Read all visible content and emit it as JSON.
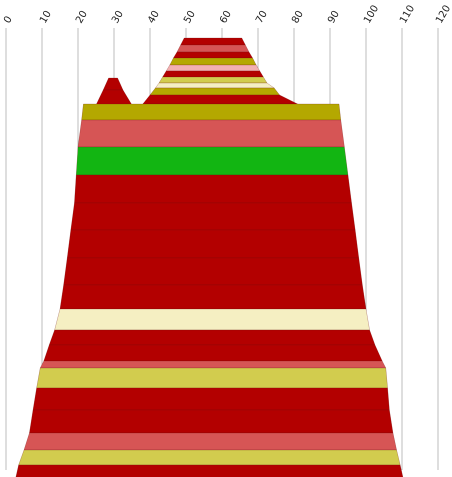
{
  "chart_data": {
    "type": "area",
    "title": "",
    "xlabel": "",
    "ylabel": "",
    "xlim": [
      0,
      120
    ],
    "x_ticks": [
      "0",
      "10",
      "20",
      "30",
      "40",
      "50",
      "60",
      "70",
      "80",
      "90",
      "100",
      "110",
      "120"
    ],
    "grid": "vertical",
    "legend": "none",
    "colors": {
      "red": "#b30000",
      "salmon": "#d65555",
      "green": "#12b512",
      "olive": "#b4a800",
      "yellow": "#d2cc4e",
      "cream": "#f5efc2",
      "pink": "#f2b0b0"
    },
    "bands": [
      {
        "top_left": 49.5,
        "top_right": 65.5,
        "bottom_left": 48.5,
        "bottom_right": 66.5,
        "color": "red"
      },
      {
        "top_left": 48.5,
        "top_right": 66.5,
        "bottom_left": 47.5,
        "bottom_right": 67.5,
        "color": "salmon"
      },
      {
        "top_left": 47.5,
        "top_right": 67.5,
        "bottom_left": 46.5,
        "bottom_right": 68.5,
        "color": "red"
      },
      {
        "top_left": 46.5,
        "top_right": 68.5,
        "bottom_left": 45.5,
        "bottom_right": 69.5,
        "color": "olive"
      },
      {
        "top_left": 45.5,
        "top_right": 69.5,
        "bottom_left": 44.5,
        "bottom_right": 70.5,
        "color": "pink"
      },
      {
        "top_left": 44.5,
        "top_right": 70.5,
        "bottom_left": 43.5,
        "bottom_right": 71.5,
        "color": "red"
      },
      {
        "top_left": 43.5,
        "top_right": 71.5,
        "bottom_left": 42.5,
        "bottom_right": 72.5,
        "color": "yellow"
      },
      {
        "top_left": 42.5,
        "top_right": 72.5,
        "bottom_left": 41.5,
        "bottom_right": 74.5,
        "color": "cream"
      },
      {
        "top_left": 41.5,
        "top_right": 74.5,
        "bottom_left": 40.0,
        "bottom_right": 76.0,
        "color": "olive"
      },
      {
        "top_left": 40.0,
        "top_right": 76.0,
        "bottom_left": 38.0,
        "bottom_right": 81.0,
        "color": "red"
      },
      {
        "top_left": 28.5,
        "top_right": 31.0,
        "bottom_left": 27.0,
        "bottom_right": 32.5,
        "color": "red"
      },
      {
        "top_left": 27.0,
        "top_right": 32.5,
        "bottom_left": 25.0,
        "bottom_right": 35.0,
        "color": "red"
      },
      {
        "top_left": 21.5,
        "top_right": 92.5,
        "bottom_left": 21.0,
        "bottom_right": 93.0,
        "color": "olive"
      },
      {
        "top_left": 21.0,
        "top_right": 93.0,
        "bottom_left": 20.0,
        "bottom_right": 94.0,
        "color": "salmon"
      },
      {
        "top_left": 20.0,
        "top_right": 94.0,
        "bottom_left": 19.5,
        "bottom_right": 95.0,
        "color": "green"
      },
      {
        "top_left": 19.5,
        "top_right": 95.0,
        "bottom_left": 19.0,
        "bottom_right": 96.0,
        "color": "red"
      },
      {
        "top_left": 19.0,
        "top_right": 96.0,
        "bottom_left": 18.0,
        "bottom_right": 97.0,
        "color": "red"
      },
      {
        "top_left": 18.0,
        "top_right": 97.0,
        "bottom_left": 17.0,
        "bottom_right": 98.0,
        "color": "red"
      },
      {
        "top_left": 17.0,
        "top_right": 98.0,
        "bottom_left": 16.0,
        "bottom_right": 99.0,
        "color": "red"
      },
      {
        "top_left": 16.0,
        "top_right": 99.0,
        "bottom_left": 15.0,
        "bottom_right": 100.0,
        "color": "red"
      },
      {
        "top_left": 15.0,
        "top_right": 100.0,
        "bottom_left": 13.5,
        "bottom_right": 101.0,
        "color": "cream"
      },
      {
        "top_left": 13.5,
        "top_right": 101.0,
        "bottom_left": 12.0,
        "bottom_right": 102.5,
        "color": "red"
      },
      {
        "top_left": 12.0,
        "top_right": 102.5,
        "bottom_left": 10.5,
        "bottom_right": 104.5,
        "color": "red"
      },
      {
        "top_left": 10.5,
        "top_right": 104.5,
        "bottom_left": 9.5,
        "bottom_right": 105.5,
        "color": "salmon"
      },
      {
        "top_left": 9.5,
        "top_right": 105.5,
        "bottom_left": 8.5,
        "bottom_right": 106.0,
        "color": "yellow"
      },
      {
        "top_left": 8.5,
        "top_right": 106.0,
        "bottom_left": 7.5,
        "bottom_right": 106.5,
        "color": "red"
      },
      {
        "top_left": 7.5,
        "top_right": 106.5,
        "bottom_left": 6.5,
        "bottom_right": 107.5,
        "color": "red"
      },
      {
        "top_left": 6.5,
        "top_right": 107.5,
        "bottom_left": 5.0,
        "bottom_right": 108.5,
        "color": "salmon"
      },
      {
        "top_left": 5.0,
        "top_right": 108.5,
        "bottom_left": 3.5,
        "bottom_right": 109.5,
        "color": "yellow"
      },
      {
        "top_left": 3.5,
        "top_right": 109.5,
        "bottom_left": 2.5,
        "bottom_right": 110.5,
        "color": "red"
      },
      {
        "top_left": 2.5,
        "top_right": 110.5,
        "bottom_left": 1.5,
        "bottom_right": 111.5,
        "color": "yellow"
      }
    ]
  }
}
